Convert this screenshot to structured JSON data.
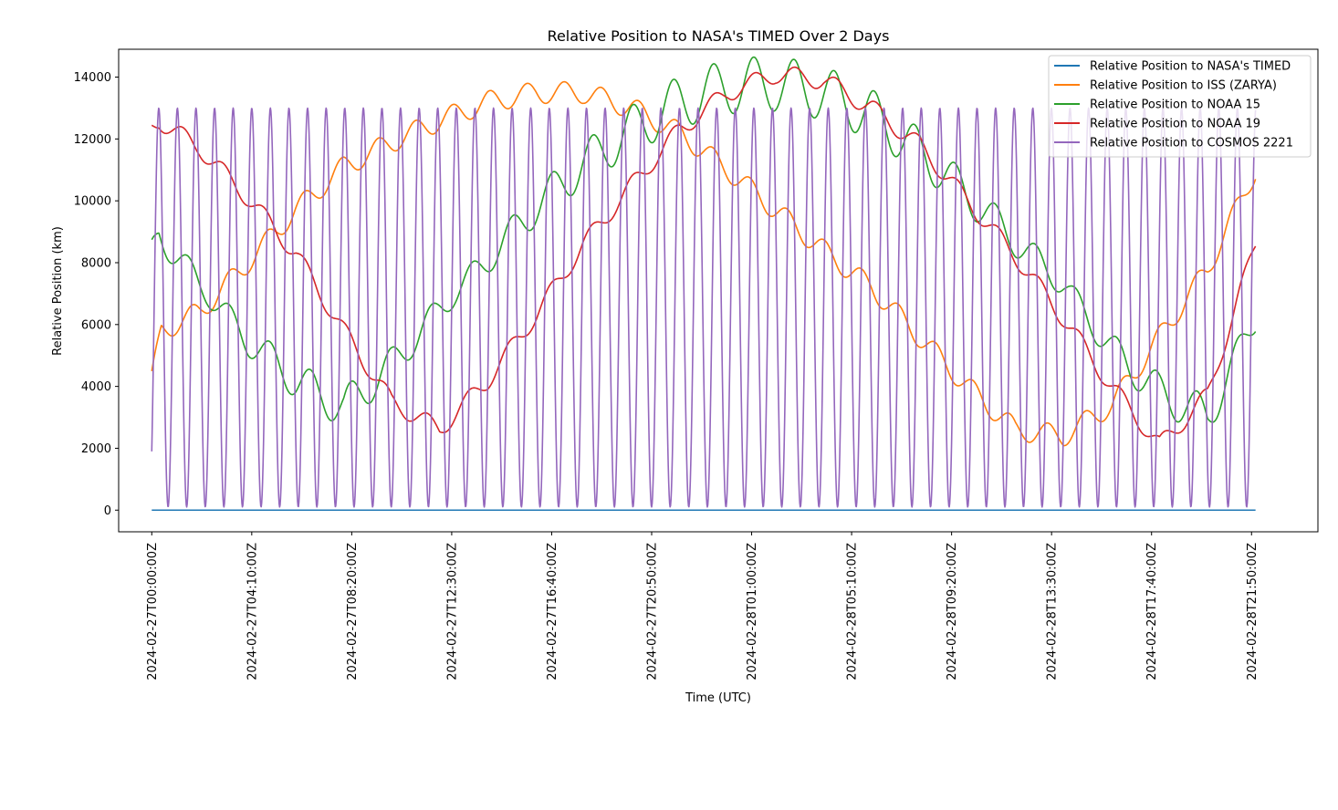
{
  "chart_data": {
    "type": "line",
    "title": "Relative Position to NASA's TIMED Over 2 Days",
    "xlabel": "Time (UTC)",
    "ylabel": "Relative Position (km)",
    "x_range_hours": [
      -1.38,
      48.6
    ],
    "data_x_range_hours": [
      0,
      46.0
    ],
    "ylim": [
      -700,
      14900
    ],
    "y_ticks": [
      0,
      2000,
      4000,
      6000,
      8000,
      10000,
      12000,
      14000
    ],
    "x_ticks": [
      {
        "hours": 0.0,
        "label": "2024-02-27T00:00:00Z"
      },
      {
        "hours": 4.1667,
        "label": "2024-02-27T04:10:00Z"
      },
      {
        "hours": 8.3333,
        "label": "2024-02-27T08:20:00Z"
      },
      {
        "hours": 12.5,
        "label": "2024-02-27T12:30:00Z"
      },
      {
        "hours": 16.6667,
        "label": "2024-02-27T16:40:00Z"
      },
      {
        "hours": 20.8333,
        "label": "2024-02-27T20:50:00Z"
      },
      {
        "hours": 25.0,
        "label": "2024-02-28T01:00:00Z"
      },
      {
        "hours": 29.1667,
        "label": "2024-02-28T05:10:00Z"
      },
      {
        "hours": 33.3333,
        "label": "2024-02-28T09:20:00Z"
      },
      {
        "hours": 37.5,
        "label": "2024-02-28T13:30:00Z"
      },
      {
        "hours": 41.6667,
        "label": "2024-02-28T17:40:00Z"
      },
      {
        "hours": 45.8333,
        "label": "2024-02-28T21:50:00Z"
      },
      {
        "hours": 50.0,
        "label": ""
      }
    ],
    "legend_position": "top-right",
    "grid": false,
    "series": [
      {
        "name": "Relative Position to NASA's TIMED",
        "color": "#1f77b4",
        "approx": "constant at 0 km"
      },
      {
        "name": "Relative Position to ISS (ZARYA)",
        "color": "#ff7f0e",
        "envelope_points": [
          [
            0,
            4200
          ],
          [
            0.4,
            5800
          ],
          [
            2,
            6400
          ],
          [
            4,
            8000
          ],
          [
            6,
            9700
          ],
          [
            8,
            11100
          ],
          [
            10,
            11900
          ],
          [
            12,
            12600
          ],
          [
            14,
            13200
          ],
          [
            16,
            13500
          ],
          [
            18,
            13500
          ],
          [
            20,
            13000
          ],
          [
            22,
            12200
          ],
          [
            24,
            11000
          ],
          [
            26,
            9700
          ],
          [
            28,
            8400
          ],
          [
            30,
            7200
          ],
          [
            32,
            5600
          ],
          [
            34,
            4000
          ],
          [
            36,
            2600
          ],
          [
            38,
            2400
          ],
          [
            40,
            3400
          ],
          [
            42,
            5600
          ],
          [
            44,
            7800
          ],
          [
            46,
            11000
          ]
        ]
      },
      {
        "name": "Relative Position to NOAA 15",
        "color": "#2ca02c",
        "envelope_points": [
          [
            0,
            8300
          ],
          [
            0.3,
            8950
          ],
          [
            2,
            7300
          ],
          [
            4,
            5500
          ],
          [
            6,
            4200
          ],
          [
            8,
            3300
          ],
          [
            10,
            4700
          ],
          [
            12,
            6500
          ],
          [
            14,
            8100
          ],
          [
            16,
            9800
          ],
          [
            18,
            11200
          ],
          [
            20,
            12300
          ],
          [
            22,
            13200
          ],
          [
            24,
            13700
          ],
          [
            26,
            13800
          ],
          [
            28,
            13500
          ],
          [
            30,
            12800
          ],
          [
            32,
            11600
          ],
          [
            34,
            10200
          ],
          [
            36,
            8700
          ],
          [
            38,
            7300
          ],
          [
            40,
            5200
          ],
          [
            42,
            3800
          ],
          [
            44,
            3000
          ],
          [
            46,
            6200
          ]
        ]
      },
      {
        "name": "Relative Position to NOAA 19",
        "color": "#d62728",
        "envelope_points": [
          [
            0,
            12400
          ],
          [
            0.3,
            12600
          ],
          [
            2,
            11700
          ],
          [
            4,
            10100
          ],
          [
            6,
            8300
          ],
          [
            8,
            5800
          ],
          [
            10,
            3500
          ],
          [
            12,
            2600
          ],
          [
            14,
            4200
          ],
          [
            16,
            6300
          ],
          [
            18,
            8600
          ],
          [
            20,
            10500
          ],
          [
            22,
            12300
          ],
          [
            24,
            13500
          ],
          [
            26,
            14100
          ],
          [
            28,
            13900
          ],
          [
            30,
            13000
          ],
          [
            32,
            11800
          ],
          [
            34,
            10000
          ],
          [
            36,
            8200
          ],
          [
            38,
            6200
          ],
          [
            40,
            4000
          ],
          [
            42,
            2100
          ],
          [
            44,
            3700
          ],
          [
            46,
            8600
          ]
        ]
      },
      {
        "name": "Relative Position to COSMOS 2221",
        "color": "#9467bd",
        "approx": "oscillation between ~100 and ~13000 km, period ~0.78 h",
        "start_value": 1900,
        "max": 13000,
        "min": 100,
        "period_hours": 0.775
      }
    ]
  }
}
